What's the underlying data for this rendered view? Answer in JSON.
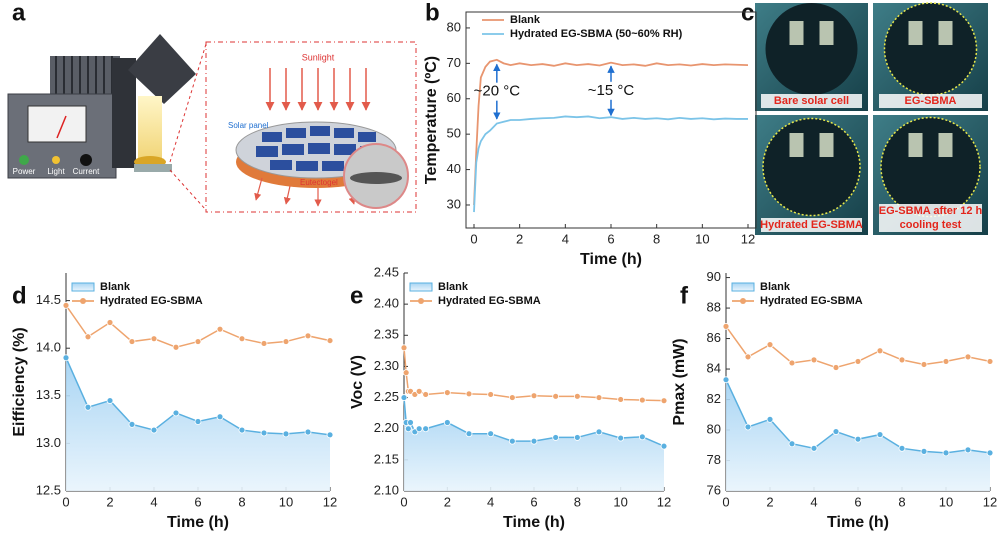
{
  "diagram": {
    "panel_label": "a",
    "sunlight": "Sunlight",
    "solar_panel": "Solar panel",
    "eutectogel": "Eutectogel",
    "power": "Power",
    "light": "Light",
    "current": "Current"
  },
  "photos": {
    "panel_label": "c",
    "captions": [
      [
        "Bare solar cell"
      ],
      [
        "EG-SBMA"
      ],
      [
        "Hydrated EG-SBMA"
      ],
      [
        "EG-SBMA after 12 h",
        "cooling test"
      ]
    ]
  },
  "chart_data": [
    {
      "type": "line",
      "panel_label": "b",
      "xlabel": "Time (h)",
      "ylabel": "Temperature (ºC)",
      "frame": true,
      "xlim": [
        -0.35,
        12.35
      ],
      "ylim": [
        23.5,
        84.5
      ],
      "xticks": [
        0,
        2,
        4,
        6,
        8,
        10,
        12
      ],
      "yticks": [
        30,
        40,
        50,
        60,
        70,
        80
      ],
      "x": [
        0,
        0.1,
        0.2,
        0.3,
        0.5,
        0.7,
        1,
        1.3,
        1.6,
        2,
        2.5,
        3,
        3.5,
        4,
        4.5,
        5,
        5.5,
        6,
        6.5,
        7,
        7.5,
        8,
        8.5,
        9,
        9.5,
        10,
        10.5,
        11,
        11.5,
        12
      ],
      "series": [
        {
          "name": "Blank",
          "color": "#e8956f",
          "values": [
            30,
            45,
            58,
            66,
            69,
            70.5,
            71,
            70,
            69.5,
            70,
            69.5,
            69.8,
            69.3,
            70,
            69.5,
            69.8,
            69.4,
            70.2,
            69.5,
            69.7,
            69.3,
            70,
            69.5,
            69.7,
            69.4,
            69.8,
            69.5,
            69.7,
            69.6,
            69.5
          ]
        },
        {
          "name": "Hydrated EG-SBMA (50~60% RH)",
          "color": "#7cc4e8",
          "values": [
            28,
            42,
            46,
            48,
            50,
            51,
            53,
            53.5,
            54,
            54,
            54.3,
            54.5,
            54.6,
            55,
            54.8,
            55,
            54.5,
            54.8,
            54.3,
            54.6,
            54.3,
            54.5,
            54.2,
            54.6,
            54.3,
            54.5,
            54.2,
            54.4,
            54.3,
            54.3
          ]
        }
      ],
      "annotations": [
        {
          "text": "~20 °C",
          "x": 1,
          "from": 54,
          "to": 70
        },
        {
          "text": "~15 °C",
          "x": 6,
          "from": 55,
          "to": 69.5
        }
      ]
    },
    {
      "type": "line",
      "panel_label": "d",
      "xlabel": "Time (h)",
      "ylabel": "Eifficiency (%)",
      "xlim": [
        0,
        12
      ],
      "ylim": [
        12.5,
        14.79
      ],
      "xticks": [
        0,
        2,
        4,
        6,
        8,
        10,
        12
      ],
      "yticks": [
        12.5,
        {
          "value": 13,
          "label": "13.0"
        },
        13.5,
        {
          "value": 14,
          "label": "14.0"
        },
        14.5
      ],
      "x": [
        0,
        1,
        2,
        3,
        4,
        5,
        6,
        7,
        8,
        9,
        10,
        11,
        12
      ],
      "series": [
        {
          "name": "Blank",
          "color": "#5ab0e0",
          "fill": true,
          "values": [
            13.9,
            13.38,
            13.45,
            13.2,
            13.14,
            13.32,
            13.23,
            13.28,
            13.14,
            13.11,
            13.1,
            13.12,
            13.09
          ]
        },
        {
          "name": "Hydrated EG-SBMA",
          "color": "#eea46e",
          "values": [
            14.45,
            14.12,
            14.27,
            14.07,
            14.1,
            14.01,
            14.07,
            14.2,
            14.1,
            14.05,
            14.07,
            14.13,
            14.08
          ]
        }
      ]
    },
    {
      "type": "line",
      "panel_label": "e",
      "xlabel": "Time (h)",
      "ylabel": "Voc (V)",
      "xlim": [
        0,
        12
      ],
      "ylim": [
        2.1,
        2.45
      ],
      "xticks": [
        0,
        2,
        4,
        6,
        8,
        10,
        12
      ],
      "yticks": [
        {
          "value": 2.1,
          "label": "2.10"
        },
        2.15,
        {
          "value": 2.2,
          "label": "2.20"
        },
        2.25,
        {
          "value": 2.3,
          "label": "2.30"
        },
        2.35,
        {
          "value": 2.4,
          "label": "2.40"
        },
        2.45
      ],
      "x": [
        0,
        0.1,
        0.2,
        0.3,
        0.5,
        0.7,
        1,
        2,
        3,
        4,
        5,
        6,
        7,
        8,
        9,
        10,
        11,
        12
      ],
      "series": [
        {
          "name": "Blank",
          "color": "#5ab0e0",
          "fill": true,
          "values": [
            2.25,
            2.21,
            2.2,
            2.21,
            2.195,
            2.2,
            2.2,
            2.21,
            2.192,
            2.192,
            2.18,
            2.18,
            2.186,
            2.186,
            2.195,
            2.185,
            2.187,
            2.172
          ]
        },
        {
          "name": "Hydrated EG-SBMA",
          "color": "#eea46e",
          "values": [
            2.33,
            2.29,
            2.26,
            2.26,
            2.255,
            2.26,
            2.255,
            2.258,
            2.256,
            2.255,
            2.25,
            2.253,
            2.252,
            2.252,
            2.25,
            2.247,
            2.246,
            2.245
          ]
        }
      ]
    },
    {
      "type": "line",
      "panel_label": "f",
      "xlabel": "Time (h)",
      "ylabel": "Pmax (mW)",
      "xlim": [
        0,
        12
      ],
      "ylim": [
        76,
        90.3
      ],
      "xticks": [
        0,
        2,
        4,
        6,
        8,
        10,
        12
      ],
      "yticks": [
        76,
        78,
        80,
        82,
        84,
        86,
        88,
        90
      ],
      "x": [
        0,
        1,
        2,
        3,
        4,
        5,
        6,
        7,
        8,
        9,
        10,
        11,
        12
      ],
      "series": [
        {
          "name": "Blank",
          "color": "#5ab0e0",
          "fill": true,
          "values": [
            83.3,
            80.2,
            80.7,
            79.1,
            78.8,
            79.9,
            79.4,
            79.7,
            78.8,
            78.6,
            78.5,
            78.7,
            78.5
          ]
        },
        {
          "name": "Hydrated EG-SBMA",
          "color": "#eea46e",
          "values": [
            86.8,
            84.8,
            85.6,
            84.4,
            84.6,
            84.1,
            84.5,
            85.2,
            84.6,
            84.3,
            84.5,
            84.8,
            84.5
          ]
        }
      ]
    }
  ]
}
